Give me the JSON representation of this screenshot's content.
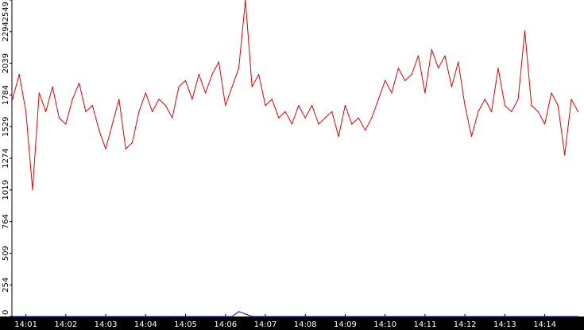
{
  "chart_data": {
    "type": "line",
    "title": "",
    "xlabel": "",
    "ylabel": "",
    "ylim": [
      0,
      2549
    ],
    "xlim": [
      "14:00:39",
      "14:14:59"
    ],
    "grid": false,
    "legend": "none",
    "y_ticks": [
      "0",
      "254",
      "509",
      "764",
      "1019",
      "1274",
      "1529",
      "1784",
      "2039",
      "2294",
      "2549"
    ],
    "x_ticks": [
      "14:01",
      "14:02",
      "14:03",
      "14:04",
      "14:05",
      "14:06",
      "14:07",
      "14:08",
      "14:09",
      "14:10",
      "14:11",
      "14:12",
      "14:13",
      "14:14"
    ],
    "series": [
      {
        "color": "#e60000",
        "x": [
          "14:00:40",
          "14:00:50",
          "14:01:00",
          "14:01:10",
          "14:01:20",
          "14:01:30",
          "14:01:40",
          "14:01:50",
          "14:02:00",
          "14:02:10",
          "14:02:20",
          "14:02:30",
          "14:02:40",
          "14:02:50",
          "14:03:00",
          "14:03:10",
          "14:03:20",
          "14:03:30",
          "14:03:40",
          "14:03:50",
          "14:04:00",
          "14:04:10",
          "14:04:20",
          "14:04:30",
          "14:04:40",
          "14:04:50",
          "14:05:00",
          "14:05:10",
          "14:05:20",
          "14:05:30",
          "14:05:40",
          "14:05:50",
          "14:06:00",
          "14:06:10",
          "14:06:20",
          "14:06:30",
          "14:06:40",
          "14:06:50",
          "14:07:00",
          "14:07:10",
          "14:07:20",
          "14:07:30",
          "14:07:40",
          "14:07:50",
          "14:08:00",
          "14:08:10",
          "14:08:20",
          "14:08:30",
          "14:08:40",
          "14:08:50",
          "14:09:00",
          "14:09:10",
          "14:09:20",
          "14:09:30",
          "14:09:40",
          "14:09:50",
          "14:10:00",
          "14:10:10",
          "14:10:20",
          "14:10:30",
          "14:10:40",
          "14:10:50",
          "14:11:00",
          "14:11:10",
          "14:11:20",
          "14:11:30",
          "14:11:40",
          "14:11:50",
          "14:12:00",
          "14:12:10",
          "14:12:20",
          "14:12:30",
          "14:12:40",
          "14:12:50",
          "14:13:00",
          "14:13:10",
          "14:13:20",
          "14:13:30",
          "14:13:40",
          "14:13:50",
          "14:14:00",
          "14:14:10",
          "14:14:20",
          "14:14:30",
          "14:14:40",
          "14:14:50"
        ],
        "values": [
          1750,
          1950,
          1650,
          1020,
          1800,
          1650,
          1850,
          1600,
          1550,
          1750,
          1880,
          1650,
          1700,
          1500,
          1350,
          1550,
          1750,
          1350,
          1400,
          1650,
          1800,
          1650,
          1750,
          1700,
          1600,
          1850,
          1900,
          1750,
          1950,
          1800,
          1950,
          2050,
          1700,
          1850,
          2000,
          2549,
          1850,
          1950,
          1700,
          1750,
          1600,
          1650,
          1550,
          1700,
          1600,
          1700,
          1550,
          1600,
          1650,
          1450,
          1700,
          1550,
          1600,
          1500,
          1600,
          1750,
          1900,
          1800,
          2000,
          1900,
          1950,
          2100,
          1800,
          2150,
          2000,
          2100,
          1850,
          2050,
          1700,
          1450,
          1650,
          1750,
          1650,
          2000,
          1700,
          1650,
          1750,
          2300,
          1700,
          1650,
          1550,
          1800,
          1700,
          1300,
          1750,
          1650
        ]
      },
      {
        "color": "#0000cc",
        "x": [
          "14:00:40",
          "14:03:00",
          "14:05:00",
          "14:06:00",
          "14:06:10",
          "14:06:20",
          "14:06:30",
          "14:06:40",
          "14:08:00",
          "14:10:00",
          "14:12:00",
          "14:14:50"
        ],
        "values": [
          0,
          0,
          0,
          0,
          0,
          40,
          20,
          0,
          0,
          0,
          0,
          0
        ]
      }
    ]
  }
}
